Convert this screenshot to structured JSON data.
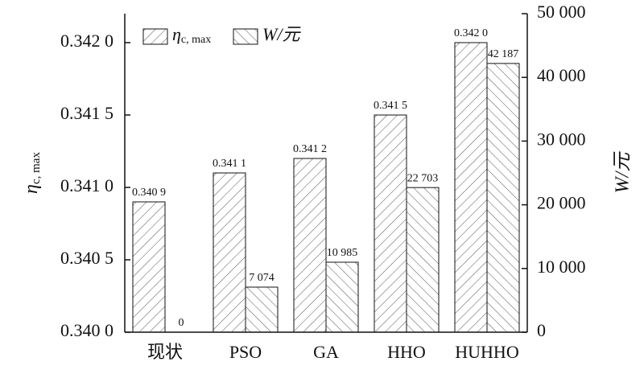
{
  "chart_data": {
    "type": "bar",
    "categories": [
      "现状",
      "PSO",
      "GA",
      "HHO",
      "HUHHO"
    ],
    "ylabel": {
      "main": "η",
      "sub": "c, max"
    },
    "y2label": "W/元",
    "series": [
      {
        "name": "η",
        "name_sub": "c, max",
        "pattern": "forward",
        "color": "#555555",
        "values": [
          0.3409,
          0.3411,
          0.3412,
          0.3415,
          0.342
        ],
        "value_labels": [
          "0.340 9",
          "0.341 1",
          "0.341 2",
          "0.341 5",
          "0.342 0"
        ]
      },
      {
        "name": "W/元",
        "pattern": "backward",
        "color": "#555555",
        "axis": "y2",
        "values": [
          0,
          7074,
          10985,
          22703,
          42187
        ],
        "value_labels": [
          "0",
          "7 074",
          "10 985",
          "22 703",
          "42 187"
        ]
      }
    ],
    "ylim": [
      0.34,
      0.3422
    ],
    "yticks": [
      {
        "value": 0.34,
        "label": "0.340 0"
      },
      {
        "value": 0.3405,
        "label": "0.340 5"
      },
      {
        "value": 0.341,
        "label": "0.341 0"
      },
      {
        "value": 0.3415,
        "label": "0.341 5"
      },
      {
        "value": 0.342,
        "label": "0.342 0"
      }
    ],
    "y2lim": [
      0,
      50000
    ],
    "y2ticks": [
      0,
      {
        "value": 10000,
        "label": "10 000"
      },
      {
        "value": 20000,
        "label": "20 000"
      },
      {
        "value": 30000,
        "label": "30 000"
      },
      {
        "value": 40000,
        "label": "40 000"
      },
      {
        "value": 50000,
        "label": "50 000"
      }
    ]
  }
}
